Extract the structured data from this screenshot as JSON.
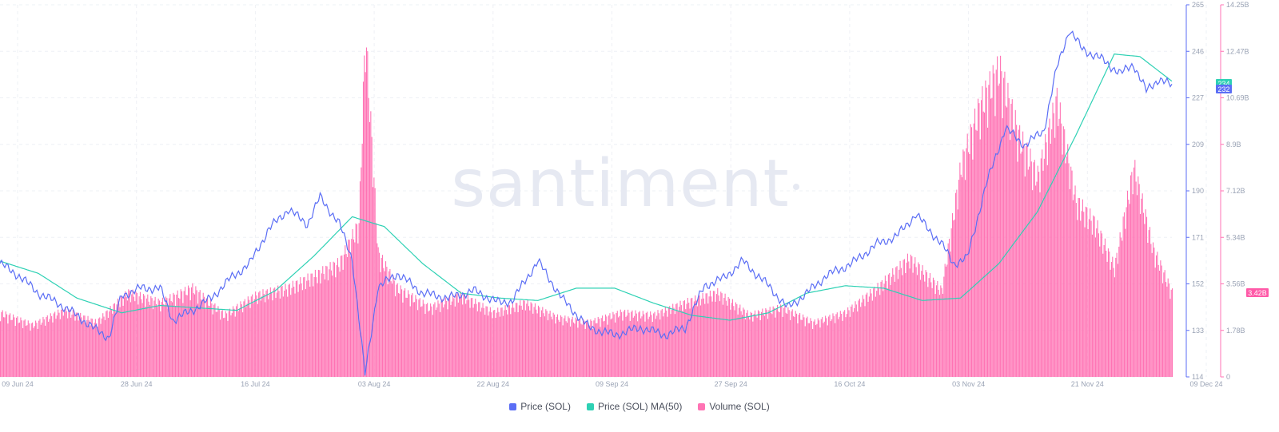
{
  "watermark": "santiment",
  "colors": {
    "price": "#5b6ef5",
    "ma": "#2ed1b4",
    "volume": "#ff73b4",
    "volume_badge": "#ff5aa8",
    "grid": "#eef0f5"
  },
  "legend": [
    {
      "label": "Price (SOL)",
      "color": "#5b6ef5"
    },
    {
      "label": "Price (SOL) MA(50)",
      "color": "#2ed1b4"
    },
    {
      "label": "Volume (SOL)",
      "color": "#ff73b4"
    }
  ],
  "badges": {
    "ma": "234",
    "price": "232",
    "volume": "3.42B"
  },
  "chart_data": {
    "type": "line",
    "x_ticks": [
      "09 Jun 24",
      "28 Jun 24",
      "16 Jul 24",
      "03 Aug 24",
      "22 Aug 24",
      "09 Sep 24",
      "27 Sep 24",
      "16 Oct 24",
      "03 Nov 24",
      "21 Nov 24",
      "09 Dec 24"
    ],
    "x_range": [
      "2024-06-09",
      "2024-12-09"
    ],
    "y_price_ticks": [
      "114",
      "133",
      "152",
      "171",
      "190",
      "209",
      "227",
      "246",
      "265"
    ],
    "y_price_range": [
      114,
      265
    ],
    "y_volume_ticks": [
      "0",
      "1.78B",
      "3.56B",
      "5.34B",
      "7.12B",
      "8.9B",
      "10.69B",
      "12.47B",
      "14.25B"
    ],
    "y_volume_range": [
      0,
      14.25
    ],
    "volume_unit": "B",
    "grid": true,
    "legend_position": "bottom-center",
    "series": [
      {
        "name": "Price (SOL)",
        "axis": "left",
        "x": [
          "2024-06-09",
          "2024-06-12",
          "2024-06-15",
          "2024-06-18",
          "2024-06-21",
          "2024-06-24",
          "2024-06-26",
          "2024-06-28",
          "2024-07-01",
          "2024-07-04",
          "2024-07-06",
          "2024-07-09",
          "2024-07-12",
          "2024-07-15",
          "2024-07-18",
          "2024-07-21",
          "2024-07-24",
          "2024-07-27",
          "2024-07-29",
          "2024-08-01",
          "2024-08-03",
          "2024-08-05",
          "2024-08-07",
          "2024-08-10",
          "2024-08-14",
          "2024-08-18",
          "2024-08-22",
          "2024-08-26",
          "2024-08-28",
          "2024-09-01",
          "2024-09-05",
          "2024-09-09",
          "2024-09-13",
          "2024-09-17",
          "2024-09-21",
          "2024-09-24",
          "2024-09-27",
          "2024-09-30",
          "2024-10-03",
          "2024-10-07",
          "2024-10-10",
          "2024-10-13",
          "2024-10-16",
          "2024-10-20",
          "2024-10-24",
          "2024-10-27",
          "2024-10-30",
          "2024-11-01",
          "2024-11-03",
          "2024-11-05",
          "2024-11-07",
          "2024-11-10",
          "2024-11-13",
          "2024-11-16",
          "2024-11-19",
          "2024-11-21",
          "2024-11-23",
          "2024-11-25",
          "2024-11-28",
          "2024-12-01",
          "2024-12-03",
          "2024-12-05",
          "2024-12-07",
          "2024-12-09"
        ],
        "values": [
          160,
          155,
          148,
          144,
          139,
          133,
          130,
          147,
          150,
          150,
          137,
          141,
          146,
          154,
          160,
          174,
          182,
          176,
          187,
          176,
          162,
          115,
          150,
          156,
          148,
          146,
          149,
          144,
          145,
          161,
          145,
          134,
          131,
          134,
          131,
          134,
          151,
          154,
          161,
          151,
          142,
          148,
          155,
          160,
          168,
          171,
          180,
          174,
          168,
          160,
          162,
          192,
          215,
          208,
          214,
          239,
          255,
          247,
          243,
          237,
          241,
          230,
          235,
          232
        ]
      },
      {
        "name": "Price (SOL) MA(50)",
        "axis": "left",
        "x": [
          "2024-06-09",
          "2024-06-15",
          "2024-06-21",
          "2024-06-28",
          "2024-07-04",
          "2024-07-10",
          "2024-07-16",
          "2024-07-22",
          "2024-07-28",
          "2024-08-03",
          "2024-08-08",
          "2024-08-14",
          "2024-08-20",
          "2024-08-26",
          "2024-09-01",
          "2024-09-07",
          "2024-09-13",
          "2024-09-19",
          "2024-09-25",
          "2024-10-01",
          "2024-10-07",
          "2024-10-13",
          "2024-10-19",
          "2024-10-25",
          "2024-10-31",
          "2024-11-06",
          "2024-11-12",
          "2024-11-18",
          "2024-11-24",
          "2024-11-30",
          "2024-12-04",
          "2024-12-09"
        ],
        "values": [
          161,
          156,
          146,
          140,
          143,
          142,
          141,
          149,
          163,
          179,
          175,
          160,
          148,
          146,
          145,
          150,
          150,
          144,
          139,
          137,
          140,
          148,
          151,
          150,
          145,
          146,
          160,
          181,
          212,
          245,
          244,
          234
        ]
      },
      {
        "name": "Volume (SOL)",
        "axis": "right",
        "x": [
          "2024-06-09",
          "2024-06-14",
          "2024-06-19",
          "2024-06-24",
          "2024-06-29",
          "2024-07-04",
          "2024-07-09",
          "2024-07-14",
          "2024-07-19",
          "2024-07-24",
          "2024-07-29",
          "2024-08-01",
          "2024-08-04",
          "2024-08-05",
          "2024-08-07",
          "2024-08-10",
          "2024-08-15",
          "2024-08-20",
          "2024-08-25",
          "2024-08-30",
          "2024-09-04",
          "2024-09-09",
          "2024-09-14",
          "2024-09-19",
          "2024-09-24",
          "2024-09-29",
          "2024-10-04",
          "2024-10-09",
          "2024-10-14",
          "2024-10-19",
          "2024-10-24",
          "2024-10-29",
          "2024-11-03",
          "2024-11-06",
          "2024-11-09",
          "2024-11-12",
          "2024-11-15",
          "2024-11-18",
          "2024-11-21",
          "2024-11-24",
          "2024-11-27",
          "2024-11-30",
          "2024-12-03",
          "2024-12-06",
          "2024-12-09"
        ],
        "values": [
          2.6,
          2.1,
          2.7,
          2.2,
          3.4,
          3.0,
          3.6,
          2.5,
          3.3,
          3.6,
          4.2,
          4.6,
          6.2,
          14.0,
          5.0,
          3.6,
          2.8,
          3.3,
          2.6,
          3.0,
          2.4,
          2.2,
          2.6,
          2.5,
          3.0,
          3.4,
          2.5,
          2.8,
          2.2,
          2.6,
          3.6,
          4.8,
          3.5,
          8.5,
          11.0,
          12.5,
          9.8,
          8.1,
          11.2,
          7.1,
          6.2,
          4.4,
          8.5,
          5.2,
          3.4
        ]
      }
    ]
  }
}
